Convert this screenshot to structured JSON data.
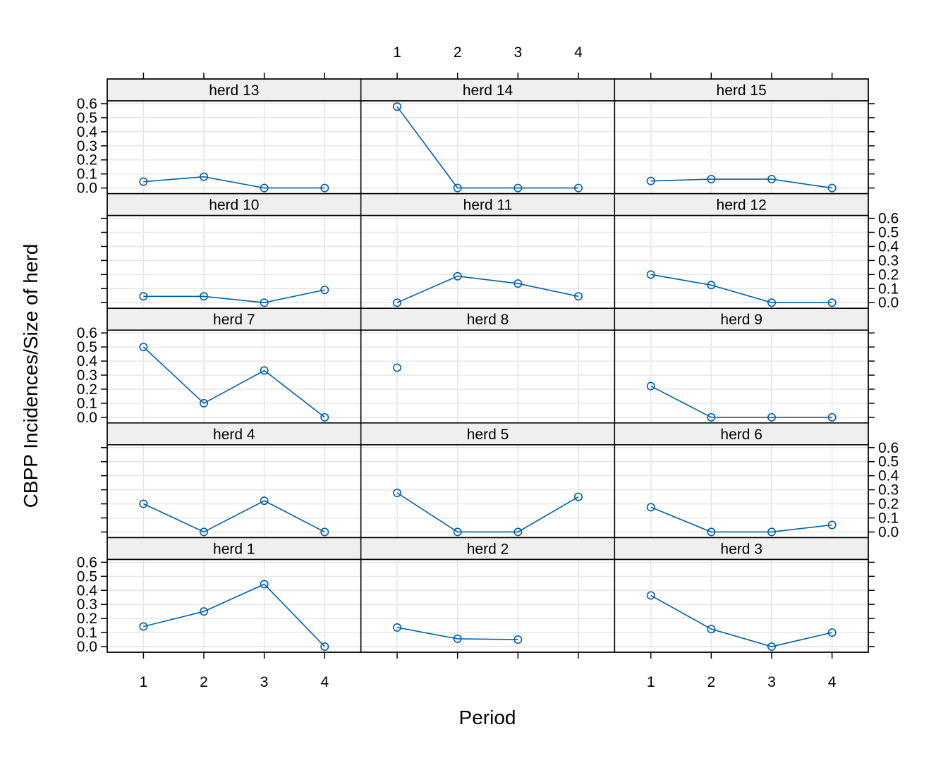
{
  "chart_data": {
    "type": "line",
    "xlabel": "Period",
    "ylabel": "CBPP Incidences/Size of herd",
    "x_ticks": [
      1,
      2,
      3,
      4
    ],
    "x_range": [
      0.4,
      4.6
    ],
    "y_ticks": [
      0.0,
      0.1,
      0.2,
      0.3,
      0.4,
      0.5,
      0.6
    ],
    "y_tick_labels": [
      "0.0",
      "0.1",
      "0.2",
      "0.3",
      "0.4",
      "0.5",
      "0.6"
    ],
    "y_range": [
      -0.04,
      0.62
    ],
    "grid": true,
    "colors": {
      "series": "#0060a8",
      "strip": "#efefef",
      "grid": "#e6e6e6",
      "frame": "#000000"
    },
    "panels": [
      {
        "strip": "herd 1",
        "x": [
          1,
          2,
          3,
          4
        ],
        "y": [
          0.143,
          0.25,
          0.444,
          0.0
        ]
      },
      {
        "strip": "herd 2",
        "x": [
          1,
          2,
          3
        ],
        "y": [
          0.136,
          0.056,
          0.05
        ]
      },
      {
        "strip": "herd 3",
        "x": [
          1,
          2,
          3,
          4
        ],
        "y": [
          0.364,
          0.125,
          0.0,
          0.1
        ]
      },
      {
        "strip": "herd 4",
        "x": [
          1,
          2,
          3,
          4
        ],
        "y": [
          0.2,
          0.0,
          0.222,
          0.0
        ]
      },
      {
        "strip": "herd 5",
        "x": [
          1,
          2,
          3,
          4
        ],
        "y": [
          0.278,
          0.0,
          0.0,
          0.25
        ]
      },
      {
        "strip": "herd 6",
        "x": [
          1,
          2,
          3,
          4
        ],
        "y": [
          0.176,
          0.0,
          0.0,
          0.05
        ]
      },
      {
        "strip": "herd 7",
        "x": [
          1,
          2,
          3,
          4
        ],
        "y": [
          0.5,
          0.1,
          0.333,
          0.0
        ]
      },
      {
        "strip": "herd 8",
        "x": [
          1
        ],
        "y": [
          0.353
        ]
      },
      {
        "strip": "herd 9",
        "x": [
          1,
          2,
          3,
          4
        ],
        "y": [
          0.222,
          0.0,
          0.0,
          0.0
        ]
      },
      {
        "strip": "herd 10",
        "x": [
          1,
          2,
          3,
          4
        ],
        "y": [
          0.045,
          0.045,
          0.0,
          0.091
        ]
      },
      {
        "strip": "herd 11",
        "x": [
          1,
          2,
          3,
          4
        ],
        "y": [
          0.0,
          0.188,
          0.136,
          0.045
        ]
      },
      {
        "strip": "herd 12",
        "x": [
          1,
          2,
          3,
          4
        ],
        "y": [
          0.2,
          0.125,
          0.0,
          0.0
        ]
      },
      {
        "strip": "herd 13",
        "x": [
          1,
          2,
          3,
          4
        ],
        "y": [
          0.045,
          0.08,
          0.0,
          0.0
        ]
      },
      {
        "strip": "herd 14",
        "x": [
          1,
          2,
          3,
          4
        ],
        "y": [
          0.579,
          0.0,
          0.0,
          0.0
        ]
      },
      {
        "strip": "herd 15",
        "x": [
          1,
          2,
          3,
          4
        ],
        "y": [
          0.05,
          0.063,
          0.063,
          0.0
        ]
      }
    ]
  }
}
